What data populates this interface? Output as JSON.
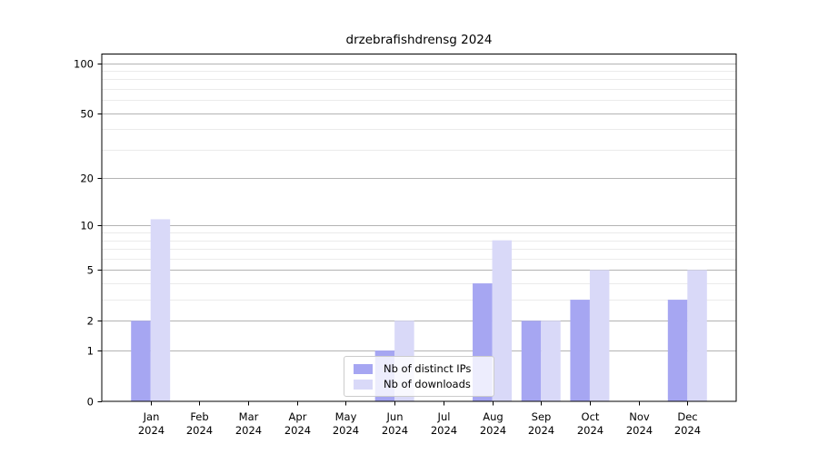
{
  "title": "drzebrafishdrensg 2024",
  "chart_data": {
    "type": "bar",
    "title": "drzebrafishdrensg 2024",
    "categories": [
      "Jan",
      "Feb",
      "Mar",
      "Apr",
      "May",
      "Jun",
      "Jul",
      "Aug",
      "Sep",
      "Oct",
      "Nov",
      "Dec"
    ],
    "year": "2024",
    "series": [
      {
        "name": "Nb of distinct IPs",
        "color": "#a6a6f2",
        "values": [
          2,
          0,
          0,
          0,
          0,
          1,
          0,
          4,
          2,
          3,
          0,
          3
        ]
      },
      {
        "name": "Nb of downloads",
        "color": "#d9d9f8",
        "values": [
          11,
          0,
          0,
          0,
          0,
          2,
          0,
          8,
          2,
          5,
          0,
          5
        ]
      }
    ],
    "xlabel": "",
    "ylabel": "",
    "yscale": "log1p",
    "ylim": [
      0,
      100
    ],
    "y_major_ticks": [
      0,
      1,
      2,
      5,
      10,
      20,
      50,
      100
    ],
    "y_minor_ticks": [
      3,
      4,
      6,
      7,
      8,
      9,
      30,
      40,
      60,
      70,
      80,
      90
    ],
    "grid": "horizontal-only",
    "legend_position": "lower-center"
  },
  "styles": {
    "grid_major_color": "#b3b3b3",
    "grid_minor_color": "#ebebeb",
    "axis_color": "#000000",
    "tick_label_color": "#000000",
    "legend_border_color": "#cccccc"
  }
}
